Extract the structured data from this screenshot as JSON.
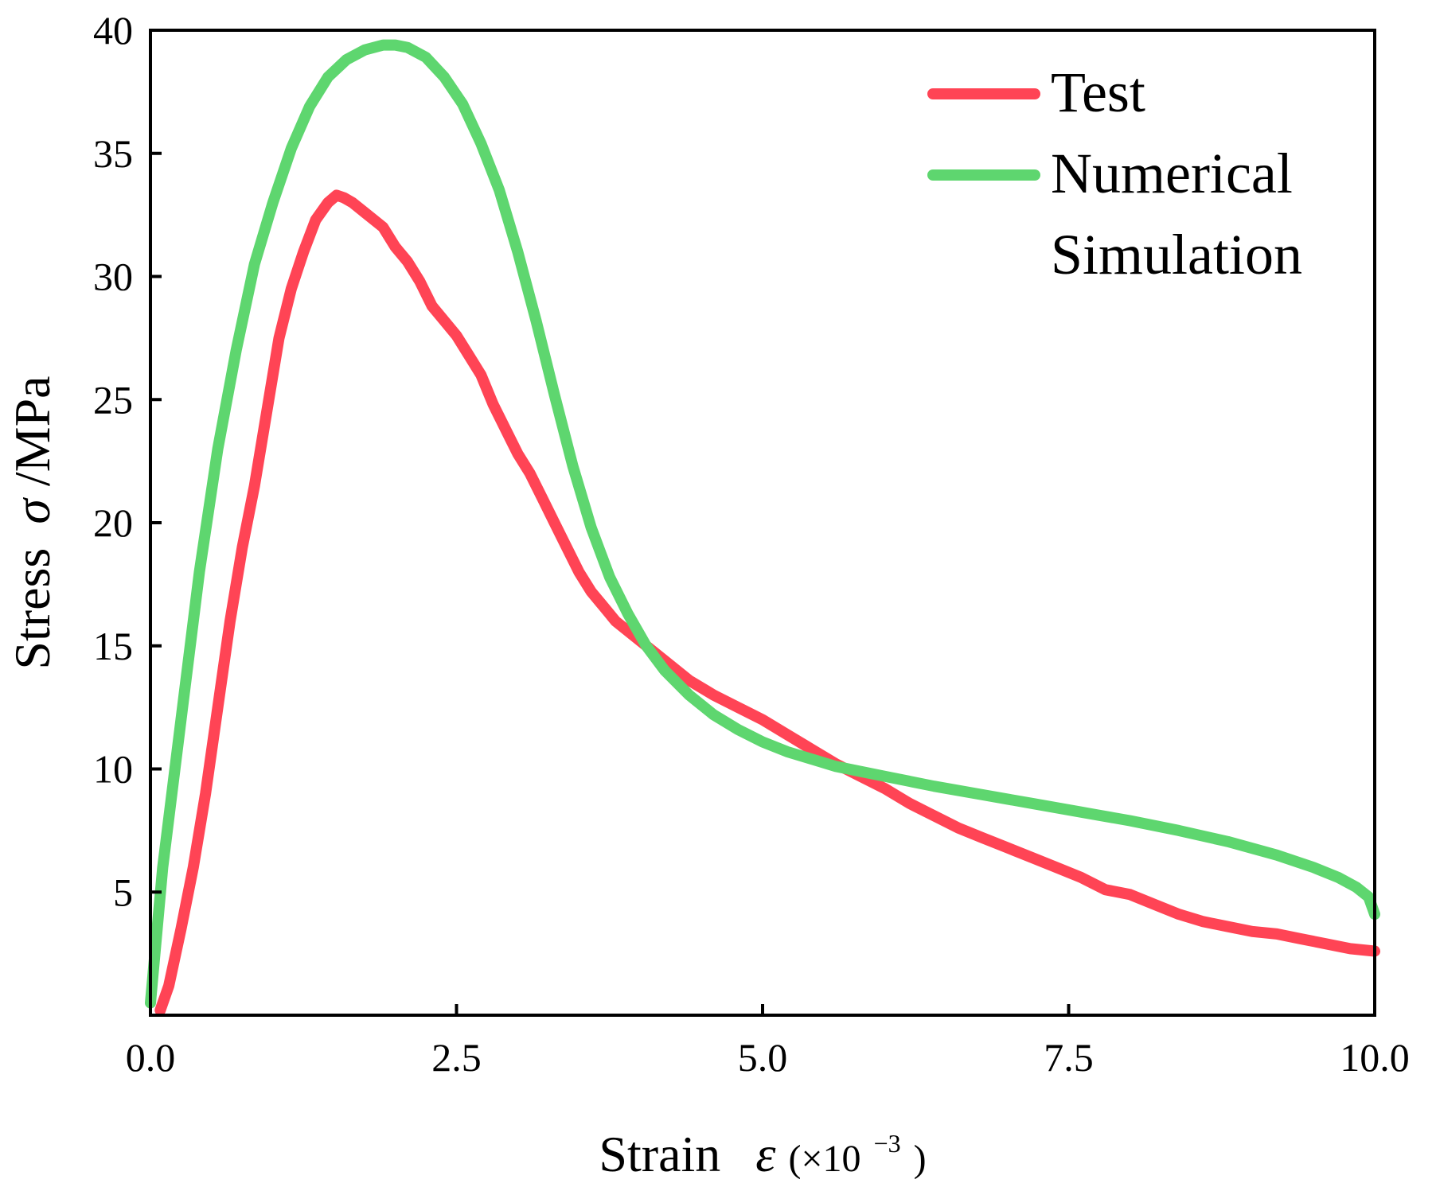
{
  "chart_data": {
    "type": "line",
    "xlabel": "Strain",
    "xlabel_symbol": "ε",
    "xlabel_unit": "(×10",
    "xlabel_exponent": "−3",
    "xlabel_close": ")",
    "ylabel": "Stress",
    "ylabel_symbol": "σ",
    "ylabel_unit": "/MPa",
    "xlim": [
      0,
      10
    ],
    "ylim": [
      0,
      40
    ],
    "x_ticks": [
      "0.0",
      "2.5",
      "5.0",
      "7.5",
      "10.0"
    ],
    "x_tick_values": [
      0,
      2.5,
      5,
      7.5,
      10
    ],
    "y_ticks": [
      "5",
      "10",
      "15",
      "20",
      "25",
      "30",
      "35",
      "40"
    ],
    "y_tick_values": [
      5,
      10,
      15,
      20,
      25,
      30,
      35,
      40
    ],
    "grid": false,
    "legend_position": "top-right",
    "series": [
      {
        "name": "Test",
        "color": "#ff4455",
        "x": [
          0.08,
          0.15,
          0.25,
          0.35,
          0.45,
          0.55,
          0.65,
          0.75,
          0.85,
          0.95,
          1.05,
          1.15,
          1.25,
          1.35,
          1.45,
          1.52,
          1.58,
          1.65,
          1.75,
          1.9,
          2.0,
          2.1,
          2.2,
          2.3,
          2.4,
          2.5,
          2.6,
          2.7,
          2.8,
          2.9,
          3.0,
          3.1,
          3.2,
          3.3,
          3.4,
          3.5,
          3.6,
          3.7,
          3.8,
          3.9,
          4.0,
          4.2,
          4.4,
          4.6,
          4.8,
          5.0,
          5.2,
          5.4,
          5.6,
          5.8,
          6.0,
          6.2,
          6.4,
          6.6,
          6.8,
          7.0,
          7.2,
          7.4,
          7.6,
          7.8,
          8.0,
          8.2,
          8.4,
          8.6,
          8.8,
          9.0,
          9.2,
          9.4,
          9.6,
          9.8,
          10.0
        ],
        "values": [
          0.2,
          1.2,
          3.5,
          6.0,
          9.0,
          12.5,
          16.0,
          19.0,
          21.5,
          24.5,
          27.5,
          29.5,
          31.0,
          32.3,
          33.0,
          33.3,
          33.2,
          33.0,
          32.6,
          32.0,
          31.2,
          30.6,
          29.8,
          28.8,
          28.2,
          27.6,
          26.8,
          26.0,
          24.8,
          23.8,
          22.8,
          22.0,
          21.0,
          20.0,
          19.0,
          18.0,
          17.2,
          16.6,
          16.0,
          15.6,
          15.2,
          14.4,
          13.6,
          13.0,
          12.5,
          12.0,
          11.4,
          10.8,
          10.2,
          9.7,
          9.2,
          8.6,
          8.1,
          7.6,
          7.2,
          6.8,
          6.4,
          6.0,
          5.6,
          5.1,
          4.9,
          4.5,
          4.1,
          3.8,
          3.6,
          3.4,
          3.3,
          3.1,
          2.9,
          2.7,
          2.6
        ]
      },
      {
        "name": "Numerical Simulation",
        "name_line1": "Numerical",
        "name_line2": "Simulation",
        "color": "#5ed66f",
        "x": [
          0.0,
          0.1,
          0.25,
          0.4,
          0.55,
          0.7,
          0.85,
          1.0,
          1.15,
          1.3,
          1.45,
          1.6,
          1.75,
          1.9,
          2.0,
          2.1,
          2.25,
          2.4,
          2.55,
          2.7,
          2.85,
          3.0,
          3.15,
          3.3,
          3.45,
          3.6,
          3.75,
          3.9,
          4.05,
          4.2,
          4.4,
          4.6,
          4.8,
          5.0,
          5.2,
          5.4,
          5.6,
          5.8,
          6.0,
          6.4,
          6.8,
          7.2,
          7.6,
          8.0,
          8.4,
          8.8,
          9.2,
          9.5,
          9.7,
          9.85,
          9.95,
          10.0
        ],
        "values": [
          0.5,
          6.0,
          12.0,
          18.0,
          23.0,
          27.0,
          30.5,
          33.0,
          35.2,
          36.9,
          38.1,
          38.8,
          39.2,
          39.4,
          39.4,
          39.3,
          38.9,
          38.1,
          37.0,
          35.4,
          33.5,
          31.0,
          28.2,
          25.2,
          22.3,
          19.8,
          17.8,
          16.3,
          15.0,
          14.0,
          13.0,
          12.2,
          11.6,
          11.1,
          10.7,
          10.4,
          10.1,
          9.9,
          9.7,
          9.3,
          8.95,
          8.6,
          8.25,
          7.9,
          7.5,
          7.05,
          6.5,
          6.0,
          5.6,
          5.2,
          4.8,
          4.1
        ]
      }
    ]
  }
}
